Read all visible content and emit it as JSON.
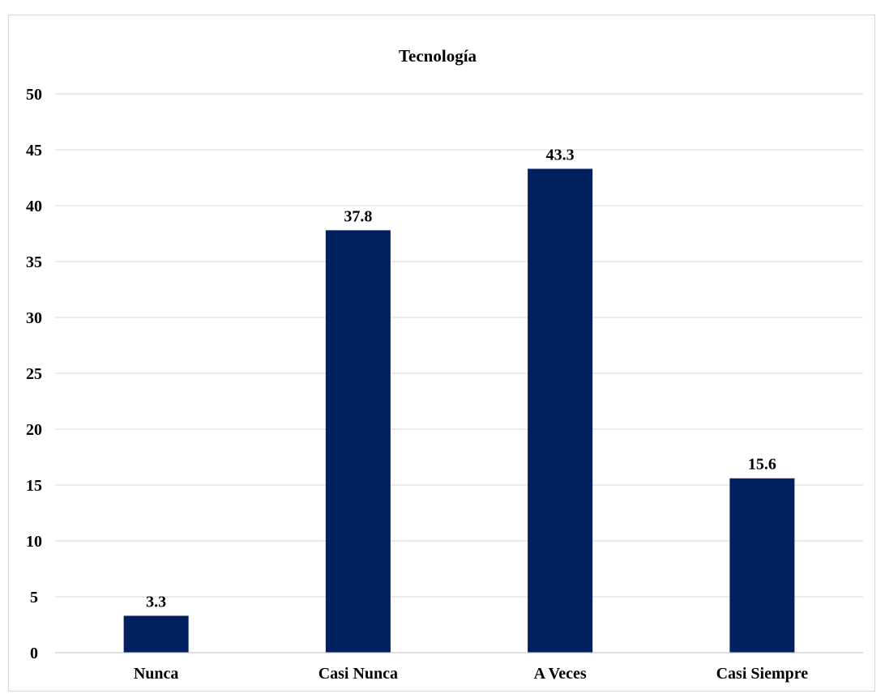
{
  "chart_data": {
    "type": "bar",
    "title": "Tecnología",
    "xlabel": "",
    "ylabel": "",
    "categories": [
      "Nunca",
      "Casi Nunca",
      "A Veces",
      "Casi Siempre"
    ],
    "values": [
      3.3,
      37.8,
      43.3,
      15.6
    ],
    "data_labels": [
      "3.3",
      "37.8",
      "43.3",
      "15.6"
    ],
    "ylim": [
      0,
      50
    ],
    "yticks": [
      "0",
      "5",
      "10",
      "15",
      "20",
      "25",
      "30",
      "35",
      "40",
      "45",
      "50"
    ],
    "grid": true,
    "legend": "none",
    "bar_color": "#002060"
  }
}
